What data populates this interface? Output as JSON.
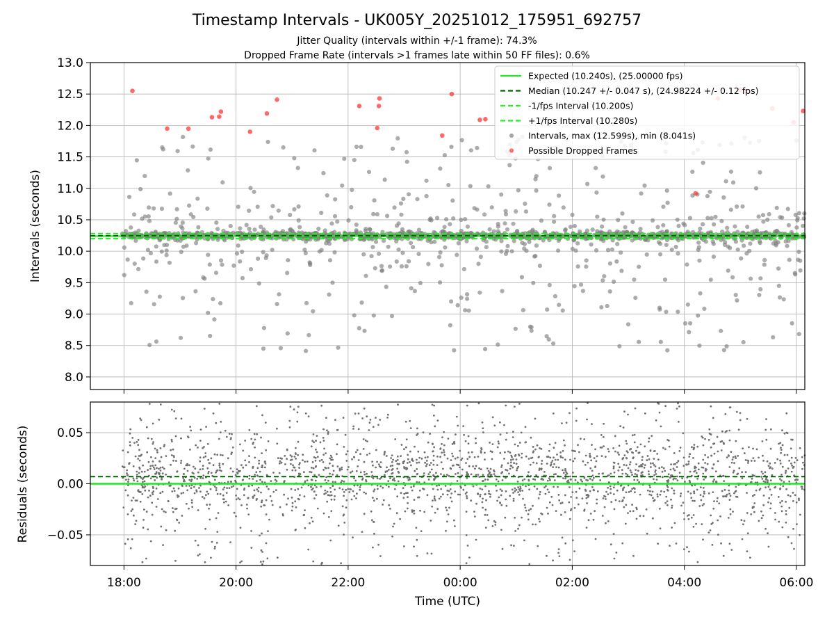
{
  "chart_data": [
    {
      "type": "scatter",
      "id": "intervals",
      "title": "Timestamp Intervals - UK005Y_20251012_175951_692757",
      "subtitle_1": "Jitter Quality (intervals within +/-1 frame): 74.3%",
      "subtitle_2": "Dropped Frame Rate (intervals >1 frames late within 50 FF files): 0.6%",
      "ylabel": "Intervals (seconds)",
      "xlim_hours": [
        17.4,
        30.15
      ],
      "ylim": [
        7.8,
        13.0
      ],
      "yticks": [
        8.0,
        8.5,
        9.0,
        9.5,
        10.0,
        10.5,
        11.0,
        11.5,
        12.0,
        12.5,
        13.0
      ],
      "ytick_labels": [
        "8.0",
        "8.5",
        "9.0",
        "9.5",
        "10.0",
        "10.5",
        "11.0",
        "11.5",
        "12.0",
        "12.5",
        "13.0"
      ],
      "grid": true,
      "legend_position": "top-right",
      "reference_lines": {
        "expected": 10.24,
        "median": 10.247,
        "minus_1_fps": 10.2,
        "plus_1_fps": 10.28
      },
      "legend": [
        {
          "label": "Expected (10.240s), (25.00000 fps)",
          "style": "solid",
          "color": "#1ee61e"
        },
        {
          "label": "Median (10.247 +/- 0.047 s), (24.98224 +/- 0.12 fps)",
          "style": "dashed",
          "color": "#006400"
        },
        {
          "label": "-1/fps Interval (10.200s)",
          "style": "dashed",
          "color": "#22ee22"
        },
        {
          "label": "+1/fps Interval (10.280s)",
          "style": "dashed",
          "color": "#22ee22"
        },
        {
          "label": "Intervals, max (12.599s), min (8.041s)",
          "style": "marker",
          "color": "#808080"
        },
        {
          "label": "Possible Dropped Frames",
          "style": "marker",
          "color": "#ff3333"
        }
      ],
      "sample_seed": 41,
      "sample_count": 1700,
      "dropped_points": [
        [
          18.15,
          12.55
        ],
        [
          18.77,
          11.95
        ],
        [
          19.15,
          11.95
        ],
        [
          19.57,
          12.13
        ],
        [
          19.7,
          12.14
        ],
        [
          19.73,
          12.22
        ],
        [
          20.25,
          11.9
        ],
        [
          20.55,
          12.19
        ],
        [
          20.73,
          12.41
        ],
        [
          22.2,
          12.31
        ],
        [
          22.52,
          11.96
        ],
        [
          22.55,
          12.31
        ],
        [
          22.56,
          12.43
        ],
        [
          23.68,
          11.84
        ],
        [
          23.85,
          12.5
        ],
        [
          24.35,
          12.09
        ],
        [
          24.45,
          12.1
        ],
        [
          28.2,
          10.92
        ],
        [
          28.6,
          12.43
        ],
        [
          29.0,
          12.57
        ],
        [
          29.1,
          12.55
        ],
        [
          29.57,
          12.27
        ],
        [
          29.95,
          12.05
        ],
        [
          30.12,
          12.23
        ]
      ]
    },
    {
      "type": "scatter",
      "id": "residuals",
      "ylabel": "Residuals (seconds)",
      "xlabel": "Time (UTC)",
      "xlim_hours": [
        17.4,
        30.15
      ],
      "ylim": [
        -0.08,
        0.08
      ],
      "yticks": [
        -0.05,
        0.0,
        0.05
      ],
      "ytick_labels": [
        "−0.05",
        "0.00",
        "0.05"
      ],
      "xticks_hours": [
        18,
        20,
        22,
        24,
        26,
        28,
        30
      ],
      "xtick_labels": [
        "18:00",
        "20:00",
        "22:00",
        "00:00",
        "02:00",
        "04:00",
        "06:00"
      ],
      "grid": true,
      "zero_line": 0.0,
      "median_offset": 0.007,
      "sample_seed": 7,
      "sample_count": 2300
    }
  ]
}
